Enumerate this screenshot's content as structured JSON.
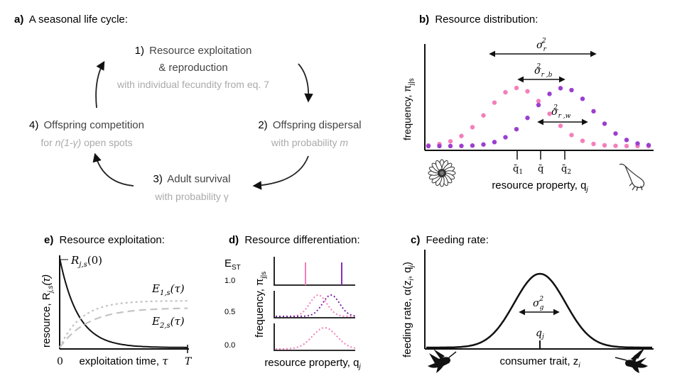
{
  "panel_a": {
    "tag": "a)",
    "title": "A seasonal life cycle:",
    "step1_num": "1)",
    "step1_line1": "Resource exploitation",
    "step1_line2": "& reproduction",
    "step1_sub": "with individual fecundity from eq. 7",
    "step2_num": "2)",
    "step2_label": "Offspring dispersal",
    "step2_sub_pre": "with probability ",
    "step2_sub_var": "m",
    "step3_num": "3)",
    "step3_label": "Adult survival",
    "step3_sub": "with probability γ",
    "step4_num": "4)",
    "step4_label": "Offspring competition",
    "step4_sub_pre": "for ",
    "step4_sub_var": "n(1-γ)",
    "step4_sub_post": " open spots"
  },
  "panel_b": {
    "tag": "b)",
    "title": "Resource distribution:",
    "ylabel": "frequency, π",
    "ylabel_sub": "j|s",
    "xlabel": "resource property, q",
    "xlabel_sub": "j",
    "sigma_r": "σ",
    "sigma_r_sub": "r",
    "sigma_rb_sub": "r ,b",
    "sigma_rw_sub": "r ,w",
    "sigma_sup": "2",
    "tick_q1": "q̄",
    "tick_q1_sub": "1",
    "tick_q": "q̄",
    "tick_q2": "q̄",
    "tick_q2_sub": "2",
    "icon_left": "flower-icon",
    "icon_right": "tubular-flower-icon",
    "colors": {
      "pink": "#f37fbb",
      "purple": "#9a3fd0"
    }
  },
  "panel_c": {
    "tag": "c)",
    "title": "Feeding rate:",
    "ylabel": "feeding rate, α(z",
    "ylabel_mid": "i",
    "ylabel_mid2": ", q",
    "ylabel_mid3": "j",
    "ylabel_end": ")",
    "xlabel": "consumer trait, z",
    "xlabel_sub": "i",
    "sigma": "σ",
    "sigma_sub": "g",
    "sigma_sup": "2",
    "peak_label": "q",
    "peak_label_sub": "j",
    "icon_left": "hummingbird-icon",
    "icon_right": "hummingbird-icon"
  },
  "panel_d": {
    "tag": "d)",
    "title": "Resource differentiation:",
    "est_label": "E",
    "est_sub": "ST",
    "ylabel": "frequency, π",
    "ylabel_sub": "j|s",
    "xlabel": "resource property, q",
    "xlabel_sub": "j",
    "levels": [
      "1.0",
      "0.5",
      "0.0"
    ]
  },
  "panel_e": {
    "tag": "e)",
    "title": "Resource exploitation:",
    "ylabel": "resource, R",
    "ylabel_sub": "j,s",
    "ylabel_end": "(τ)",
    "xlabel": "exploitation time, ",
    "xlabel_var": "τ",
    "tick_zero": "0",
    "tick_T": "T",
    "curve_R": "R",
    "curve_R_sub": "j,s",
    "curve_R_arg": "(0)",
    "curve_E1": "E",
    "curve_E1_sub": "1,s",
    "curve_E1_arg": "(τ)",
    "curve_E2": "E",
    "curve_E2_sub": "2,s",
    "curve_E2_arg": "(τ)"
  }
}
